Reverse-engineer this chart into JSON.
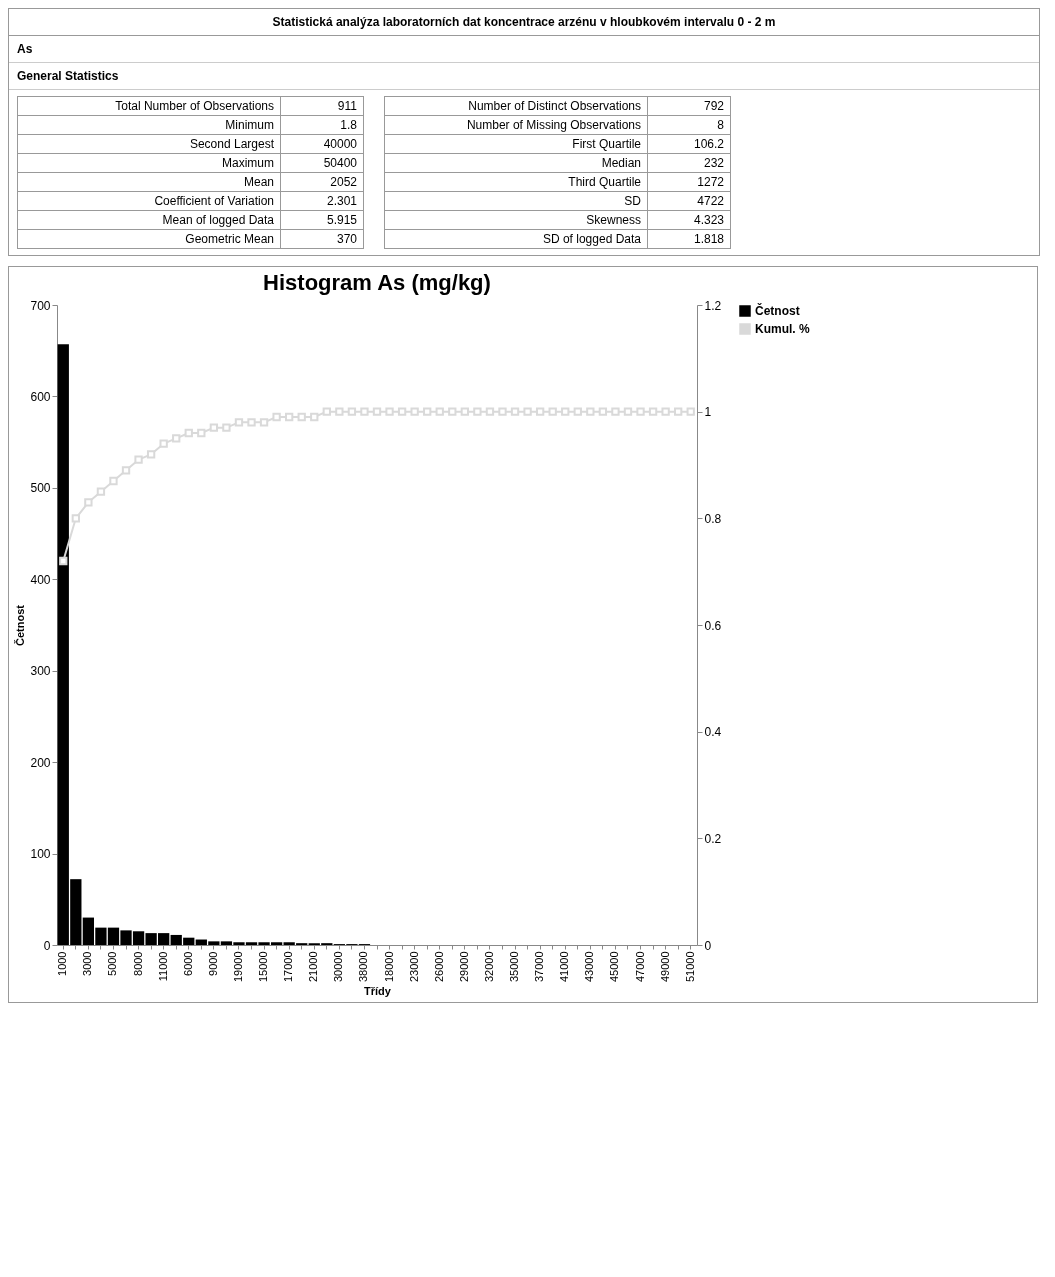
{
  "chart_data": [
    {
      "type": "other",
      "title": "Statistická analýza laboratorních dat koncentrace arzénu v hloubkovém intervalu 0 - 2 m",
      "annotations": [
        "As",
        "General Statistics",
        "Total Number of Observations",
        "911",
        "Minimum",
        "1.8",
        "Second Largest",
        "40000",
        "Maximum",
        "50400",
        "Mean",
        "2052",
        "Coefficient of Variation",
        "2.301",
        "Mean of logged Data",
        "5.915",
        "Geometric Mean",
        "370",
        "Number of Distinct Observations",
        "792",
        "Number of Missing Observations",
        "8",
        "First Quartile",
        "106.2",
        "Median",
        "232",
        "Third Quartile",
        "1272",
        "SD",
        "4722",
        "Skewness",
        "4.323",
        "SD of logged Data",
        "1.818"
      ]
    },
    {
      "type": "bar",
      "title": "Histogram As (mg/kg)",
      "xlabel": "Třídy",
      "ylabel": "Četnost",
      "categories": [
        "1000",
        null,
        "3000",
        null,
        "5000",
        null,
        "8000",
        null,
        "11000",
        null,
        "6000",
        null,
        "9000",
        null,
        "19000",
        null,
        "15000",
        null,
        "17000",
        null,
        "21000",
        null,
        "30000",
        null,
        "38000",
        null,
        "18000",
        null,
        "23000",
        null,
        "26000",
        null,
        "29000",
        null,
        "32000",
        null,
        "35000",
        null,
        "37000",
        null,
        "41000",
        null,
        "43000",
        null,
        "45000",
        null,
        "47000",
        null,
        "49000",
        null,
        "51000"
      ],
      "series": [
        {
          "name": "Četnost",
          "color": "#000000",
          "values": [
            657,
            72,
            30,
            19,
            19,
            16,
            15,
            13,
            13,
            11,
            8,
            6,
            4,
            4,
            3,
            3,
            3,
            3,
            3,
            2,
            2,
            2,
            1,
            1,
            1,
            0,
            0,
            0,
            0,
            0,
            0,
            0,
            0,
            0,
            0,
            0,
            0,
            0,
            0,
            0,
            0,
            0,
            0,
            0,
            0,
            0,
            0,
            0,
            0,
            0,
            0
          ]
        },
        {
          "name": "Kumul. %",
          "type": "line",
          "axis": "y2",
          "color": "#d9d9d9",
          "values": [
            0.72,
            0.8,
            0.83,
            0.85,
            0.87,
            0.89,
            0.91,
            0.92,
            0.94,
            0.95,
            0.96,
            0.96,
            0.97,
            0.97,
            0.98,
            0.98,
            0.98,
            0.99,
            0.99,
            0.99,
            0.99,
            1,
            1,
            1,
            1,
            1,
            1,
            1,
            1,
            1,
            1,
            1,
            1,
            1,
            1,
            1,
            1,
            1,
            1,
            1,
            1,
            1,
            1,
            1,
            1,
            1,
            1,
            1,
            1,
            1,
            1
          ]
        }
      ],
      "ylim": [
        0,
        700
      ],
      "yticks": [
        0,
        100,
        200,
        300,
        400,
        500,
        600,
        700
      ],
      "y2lim": [
        0,
        1.2
      ],
      "y2ticks": [
        0,
        0.2,
        0.4,
        0.6,
        0.8,
        1,
        1.2
      ],
      "marker": "square",
      "legend": "right",
      "grid": false
    }
  ]
}
